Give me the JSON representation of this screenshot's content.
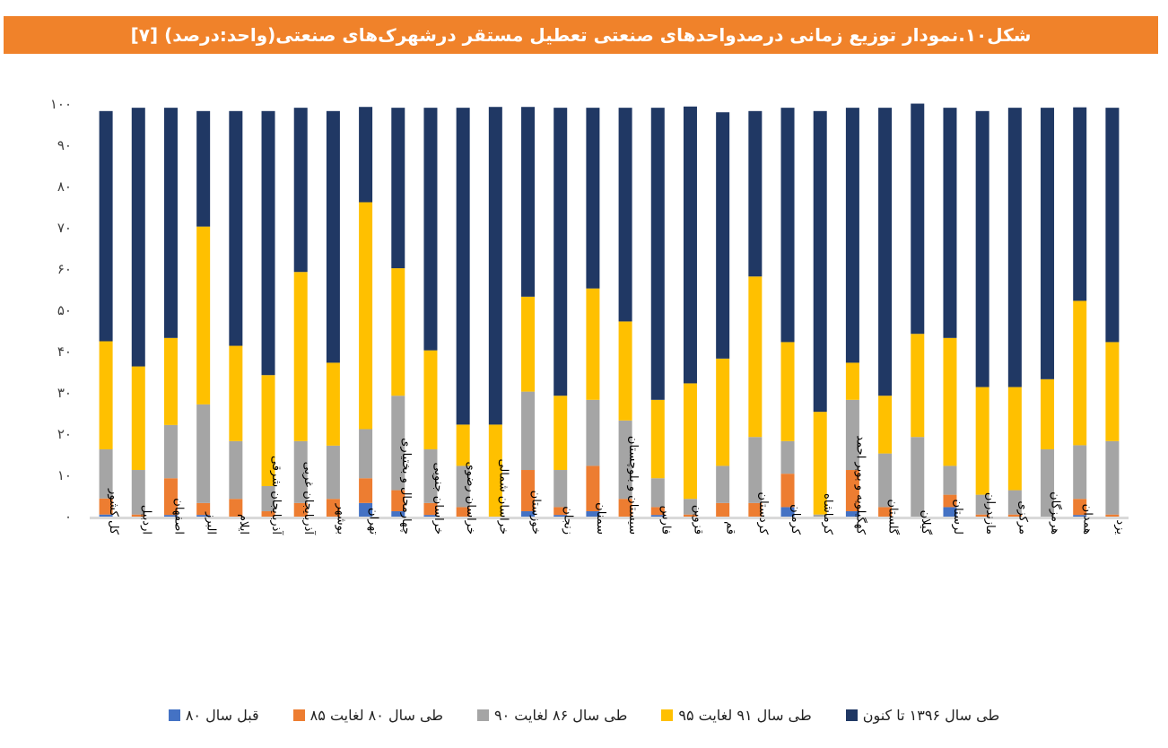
{
  "chart_data": {
    "type": "bar",
    "stacked": true,
    "title": "شکل۱۰.نمودار توزیع زمانی درصدواحدهای صنعتی تعطیل مستقر درشهرک‌های صنعتی(واحد:درصد) [۷]",
    "xlabel": "",
    "ylabel": "",
    "ylim": [
      0,
      100
    ],
    "yticks": [
      0,
      10,
      20,
      30,
      40,
      50,
      60,
      70,
      80,
      90,
      100
    ],
    "ytick_labels": [
      "۰",
      "۱۰",
      "۲۰",
      "۳۰",
      "۴۰",
      "۵۰",
      "۶۰",
      "۷۰",
      "۸۰",
      "۹۰",
      "۱۰۰"
    ],
    "grid": false,
    "legend_position": "bottom",
    "categories": [
      "کل کشور",
      "اردبیل",
      "اصفهان",
      "البرز",
      "ایلام",
      "آذربایجان شرقی",
      "آذربایجان غربی",
      "بوشهر",
      "تهران",
      "چهارمحال و بختیاری",
      "خراسان جنوبی",
      "خراسان رضوی",
      "خراسان شمالی",
      "خوزستان",
      "زنجان",
      "سمنان",
      "سیستان و بلوچستان",
      "فارس",
      "قزوین",
      "قم",
      "کردستان",
      "کرمان",
      "کرماشاه",
      "کهگیلویه و بویر احمد",
      "گلستان",
      "گیلان",
      "لرستان",
      "مازندران",
      "مرکزی",
      "هرمزگان",
      "همدان",
      "یزد"
    ],
    "series": [
      {
        "name": "قبل سال ۸۰",
        "color": "#4472C4",
        "values": [
          0.5,
          0,
          0.4,
          0.4,
          0,
          0,
          0,
          0,
          3.3,
          1.3,
          0.4,
          0,
          0,
          1.3,
          0.4,
          1.3,
          0,
          0.4,
          0,
          0,
          0,
          2.3,
          0,
          1.3,
          0,
          0,
          2.3,
          0,
          0,
          0,
          0.4,
          0
        ]
      },
      {
        "name": "طی سال ۸۰ لغایت ۸۵",
        "color": "#ED7D31",
        "values": [
          3.9,
          0.5,
          8.9,
          2.9,
          4.3,
          1.3,
          3.3,
          4.3,
          6,
          5.1,
          2.9,
          2.3,
          0,
          10,
          1.9,
          11,
          4.3,
          1.9,
          0.5,
          3.3,
          3.3,
          8.1,
          0,
          10,
          2.3,
          0,
          3,
          0.5,
          0.5,
          0,
          3.9,
          0.5
        ]
      },
      {
        "name": "طی سال ۸۶ لغایت ۹۰",
        "color": "#A5A5A5",
        "values": [
          11.9,
          10.8,
          12.9,
          23.9,
          14,
          6.1,
          15,
          12.9,
          11.9,
          22.9,
          13,
          10,
          0,
          19,
          9,
          16,
          19,
          7,
          3.8,
          9,
          16,
          7.9,
          0.5,
          17,
          13,
          19.3,
          7,
          4.8,
          5.9,
          16.3,
          13,
          17.8
        ]
      },
      {
        "name": "طی سال ۹۱ لغایت ۹۵",
        "color": "#FFC000",
        "values": [
          26.2,
          25.1,
          21.1,
          43.1,
          23.1,
          26.9,
          41,
          20.1,
          55,
          30.9,
          24,
          10,
          22.3,
          23,
          18,
          27,
          24,
          19,
          28,
          26,
          38.9,
          24,
          24.9,
          9,
          14,
          25,
          31,
          26.1,
          25,
          17,
          35,
          24
        ]
      },
      {
        "name": "طی سال ۱۳۹۶ تا کنون",
        "color": "#203864",
        "values": [
          55.8,
          62.7,
          55.8,
          28,
          56.9,
          64,
          39.8,
          61,
          23.1,
          38.9,
          58.8,
          76.8,
          77,
          46,
          69.8,
          43.8,
          51.8,
          70.8,
          67.1,
          59.7,
          40.1,
          56.8,
          72.9,
          61.8,
          69.8,
          55.8,
          55.8,
          66.9,
          67.7,
          65.8,
          46.9,
          56.8
        ]
      }
    ]
  },
  "colors": {
    "title_bar": "#F0822A",
    "axis_line": "#D9D9D9"
  }
}
